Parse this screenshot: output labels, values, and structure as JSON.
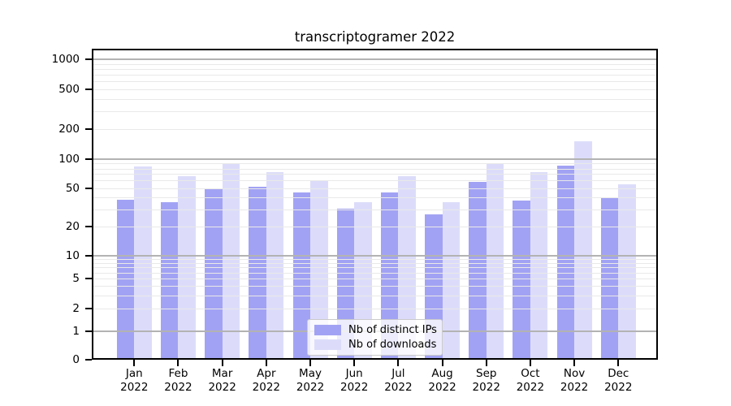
{
  "chart_data": {
    "type": "bar",
    "title": "transcriptogramer 2022",
    "yscale": "symlog",
    "ylim": [
      0,
      1000
    ],
    "yticks": [
      0,
      1,
      2,
      5,
      10,
      20,
      50,
      100,
      200,
      500,
      1000
    ],
    "grid": true,
    "legend_position": "lower center",
    "categories": [
      {
        "month": "Jan",
        "year": "2022"
      },
      {
        "month": "Feb",
        "year": "2022"
      },
      {
        "month": "Mar",
        "year": "2022"
      },
      {
        "month": "Apr",
        "year": "2022"
      },
      {
        "month": "May",
        "year": "2022"
      },
      {
        "month": "Jun",
        "year": "2022"
      },
      {
        "month": "Jul",
        "year": "2022"
      },
      {
        "month": "Aug",
        "year": "2022"
      },
      {
        "month": "Sep",
        "year": "2022"
      },
      {
        "month": "Oct",
        "year": "2022"
      },
      {
        "month": "Nov",
        "year": "2022"
      },
      {
        "month": "Dec",
        "year": "2022"
      }
    ],
    "series": [
      {
        "name": "Nb of distinct IPs",
        "color": "#a2a2f4",
        "values": [
          38,
          36,
          50,
          52,
          45,
          31,
          45,
          27,
          58,
          37,
          85,
          40
        ]
      },
      {
        "name": "Nb of downloads",
        "color": "#dcdcfa",
        "values": [
          84,
          66,
          90,
          73,
          59,
          36,
          67,
          36,
          90,
          73,
          150,
          55
        ]
      }
    ]
  },
  "colors": {
    "major_grid": "#b3b3b3",
    "minor_grid": "#e9e9e9",
    "spine": "#000000",
    "text": "#000000"
  }
}
